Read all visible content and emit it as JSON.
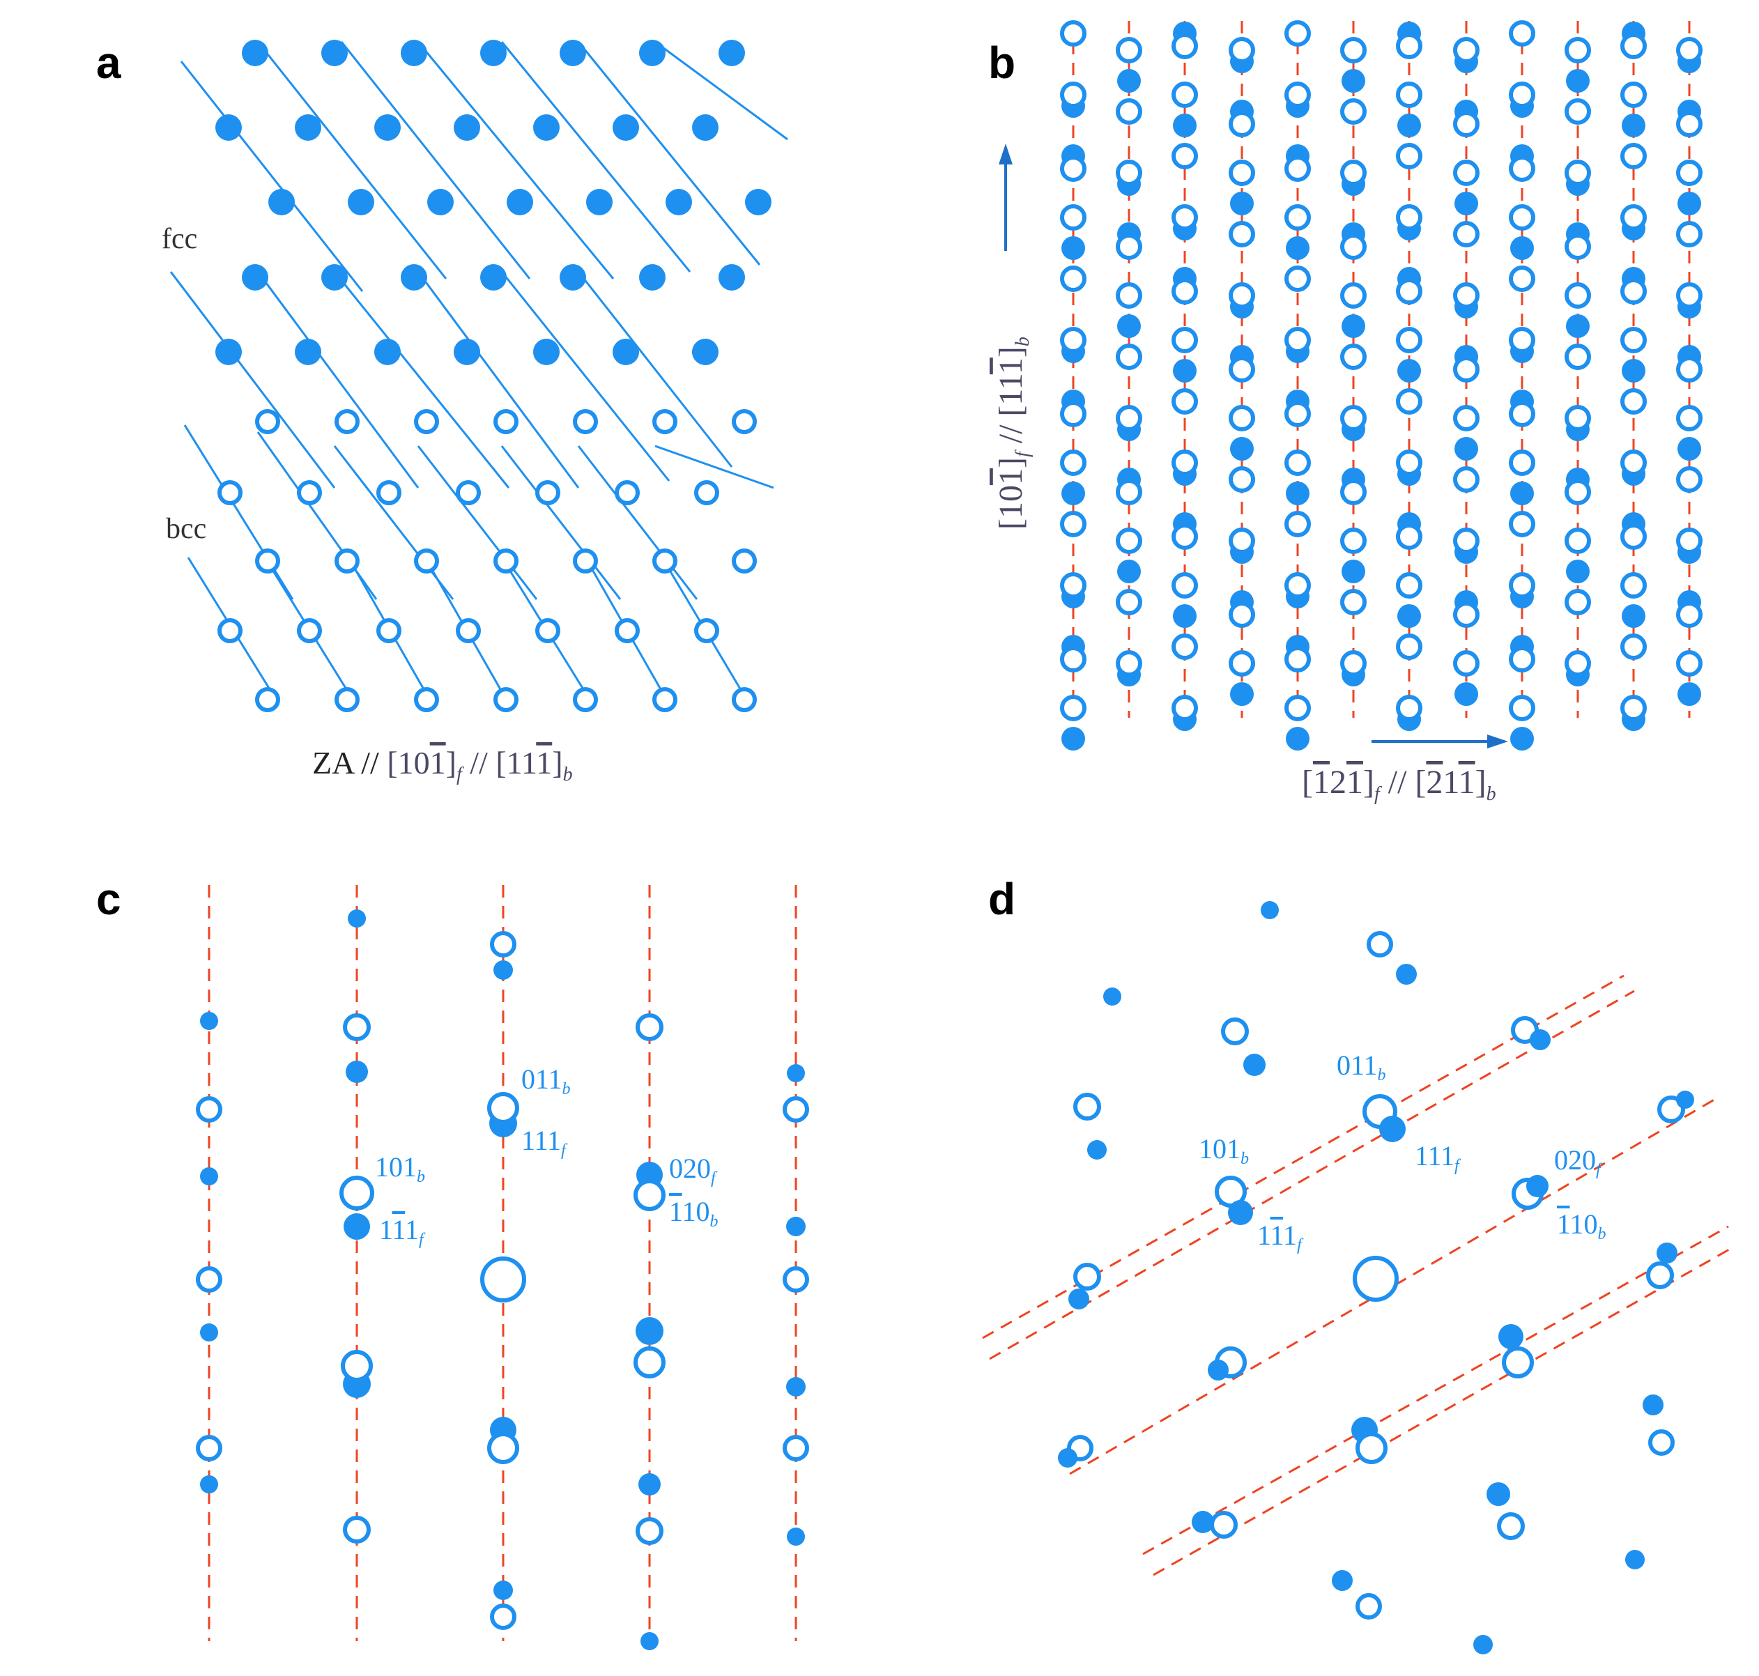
{
  "colors": {
    "atom": "#1e90f0",
    "trace": "#ee4422",
    "label_dark": "#444455",
    "axis_label": "#4a4a66"
  },
  "panels": {
    "a": {
      "letter": "a",
      "fcc_label": "fcc",
      "bcc_label": "bcc",
      "zone_axis": {
        "prefix": "ZA // ",
        "fcc_dir": "[10",
        "fcc_bar": "1",
        "fcc_close": "]",
        "fcc_sub": "f",
        "sep": " // ",
        "bcc_dir": "[11",
        "bcc_bar": "1",
        "bcc_close": "]",
        "bcc_sub": "b"
      }
    },
    "b": {
      "letter": "b",
      "vertical_axis": {
        "fcc_pre": "[10",
        "fcc_bar": "1",
        "fcc_close": "]",
        "fcc_sub": "f",
        "sep": " // ",
        "bcc_pre": "[11",
        "bcc_bar": "1",
        "bcc_close": "]",
        "bcc_sub": "b"
      },
      "horizontal_axis": {
        "fcc_bar1": "1",
        "fcc_mid": "2",
        "fcc_bar2": "1",
        "fcc_sub": "f",
        "sep": " // ",
        "bcc_bar1": "2",
        "bcc_mid": "1",
        "bcc_bar2": "1",
        "bcc_sub": "b"
      }
    },
    "c": {
      "letter": "c",
      "labels": {
        "l011b": {
          "main": "011",
          "sub": "b"
        },
        "l111f": {
          "main": "111",
          "sub": "f"
        },
        "l101b": {
          "main": "101",
          "sub": "b"
        },
        "l1m11f": {
          "pre": "1",
          "bar": "1",
          "post": "1",
          "sub": "f"
        },
        "l020f": {
          "main": "020",
          "sub": "f"
        },
        "lm110b": {
          "bar": "1",
          "post": "10",
          "sub": "b"
        }
      }
    },
    "d": {
      "letter": "d",
      "labels": {
        "l011b": {
          "main": "011",
          "sub": "b"
        },
        "l111f": {
          "main": "111",
          "sub": "f"
        },
        "l101b": {
          "main": "101",
          "sub": "b"
        },
        "l1m11f": {
          "pre": "1",
          "bar": "1",
          "post": "1",
          "sub": "f"
        },
        "l020f": {
          "main": "020",
          "sub": "f"
        },
        "lm110b": {
          "bar": "1",
          "post": "10",
          "sub": "b"
        }
      }
    }
  }
}
